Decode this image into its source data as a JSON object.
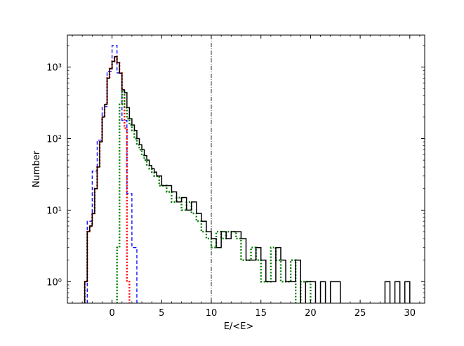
{
  "chart_data": {
    "type": "step",
    "title": "",
    "xlabel": "E/<E>",
    "ylabel": "Number",
    "xlim": [
      -4.5,
      31.5
    ],
    "ylim": [
      0.5,
      2800
    ],
    "yscale": "log",
    "grid": false,
    "legend": "none",
    "x_ticks": [
      0,
      5,
      10,
      15,
      20,
      25,
      30
    ],
    "x_tick_labels": [
      "0",
      "5",
      "10",
      "15",
      "20",
      "25",
      "30"
    ],
    "y_ticks": [
      1,
      10,
      100,
      1000
    ],
    "y_tick_labels": [
      "10⁰",
      "10¹",
      "10²",
      "10³"
    ],
    "vline": {
      "x": 10,
      "style": "dash-dot",
      "color": "#000000"
    },
    "series": [
      {
        "color": "#0000ff",
        "style": "dashed",
        "edges": [
          -2.5,
          -2.0,
          -1.5,
          -1.0,
          -0.5,
          0.0,
          0.5,
          1.0,
          1.5,
          2.0,
          2.5
        ],
        "counts": [
          7,
          35,
          95,
          280,
          870,
          2000,
          830,
          180,
          17,
          3
        ]
      },
      {
        "color": "#ff0000",
        "style": "dotted",
        "edges": [
          -2.75,
          -2.5,
          -2.25,
          -2.0,
          -1.75,
          -1.5,
          -1.25,
          -1.0,
          -0.75,
          -0.5,
          -0.25,
          0.0,
          0.25,
          0.5,
          0.75,
          1.0,
          1.25,
          1.5,
          1.75
        ],
        "counts": [
          1,
          5,
          6,
          9,
          20,
          40,
          90,
          200,
          300,
          700,
          950,
          1200,
          1400,
          1150,
          820,
          480,
          140,
          1
        ]
      },
      {
        "color": "#008000",
        "style": "dotted",
        "edges": [
          0.5,
          0.75,
          1.0,
          1.25,
          1.5,
          1.75,
          2.0,
          2.25,
          2.5,
          2.75,
          3.0,
          3.25,
          3.5,
          3.75,
          4.0,
          4.25,
          4.5,
          4.75,
          5.0,
          5.5,
          6.0,
          6.5,
          7.0,
          7.5,
          8.0,
          8.5,
          9.0,
          9.5,
          10.0,
          10.5,
          11.0,
          11.5,
          12.0,
          12.5,
          13.0,
          13.5,
          14.0,
          14.5,
          15.0,
          15.5,
          16.0,
          16.5,
          17.0,
          17.5,
          18.0,
          18.5,
          19.0,
          19.5,
          20.0,
          20.5,
          21.0,
          21.5,
          22.0,
          22.5,
          23.0,
          23.5,
          24.0,
          24.5,
          25.0,
          25.5,
          26.0,
          26.5,
          27.0,
          27.5,
          28.0,
          28.5,
          29.0,
          29.5,
          30.0
        ],
        "counts": [
          3,
          300,
          460,
          270,
          190,
          155,
          130,
          100,
          82,
          70,
          58,
          50,
          42,
          38,
          34,
          30,
          30,
          22,
          22,
          18,
          13,
          15,
          10,
          13,
          9,
          7,
          5,
          4,
          3,
          5,
          4,
          5,
          5,
          4,
          2,
          2,
          3,
          2,
          1,
          1,
          3,
          2,
          1,
          1,
          2,
          0,
          1,
          1,
          0,
          0,
          0,
          0,
          0,
          0,
          0,
          0,
          0,
          0,
          0,
          0,
          0,
          0,
          0,
          0,
          0,
          0,
          0,
          0
        ]
      },
      {
        "color": "#000000",
        "style": "solid",
        "edges": [
          -2.75,
          -2.5,
          -2.25,
          -2.0,
          -1.75,
          -1.5,
          -1.25,
          -1.0,
          -0.75,
          -0.5,
          -0.25,
          0.0,
          0.25,
          0.5,
          0.75,
          1.0,
          1.25,
          1.5,
          1.75,
          2.0,
          2.25,
          2.5,
          2.75,
          3.0,
          3.25,
          3.5,
          3.75,
          4.0,
          4.25,
          4.5,
          4.75,
          5.0,
          5.5,
          6.0,
          6.5,
          7.0,
          7.5,
          8.0,
          8.5,
          9.0,
          9.5,
          10.0,
          10.5,
          11.0,
          11.5,
          12.0,
          12.5,
          13.0,
          13.5,
          14.0,
          14.5,
          15.0,
          15.5,
          16.0,
          16.5,
          17.0,
          17.5,
          18.0,
          18.5,
          19.0,
          19.5,
          20.0,
          20.5,
          21.0,
          21.5,
          22.0,
          22.5,
          23.0,
          23.5,
          24.0,
          24.5,
          25.0,
          25.5,
          26.0,
          26.5,
          27.0,
          27.5,
          28.0,
          28.5,
          29.0,
          29.5,
          30.0
        ],
        "counts": [
          1,
          5,
          6,
          9,
          20,
          40,
          90,
          200,
          300,
          700,
          950,
          1200,
          1400,
          1150,
          820,
          480,
          440,
          271,
          190,
          155,
          130,
          100,
          82,
          70,
          58,
          50,
          42,
          38,
          34,
          30,
          30,
          22,
          22,
          18,
          13,
          15,
          10,
          13,
          9,
          7,
          5,
          4,
          3,
          5,
          4,
          5,
          5,
          4,
          2,
          2,
          3,
          2,
          1,
          1,
          3,
          2,
          1,
          1,
          2,
          0,
          1,
          1,
          0,
          1,
          0,
          1,
          1,
          0,
          0,
          0,
          0,
          0,
          0,
          0,
          0,
          0,
          1,
          0,
          1,
          0,
          1
        ]
      }
    ]
  }
}
